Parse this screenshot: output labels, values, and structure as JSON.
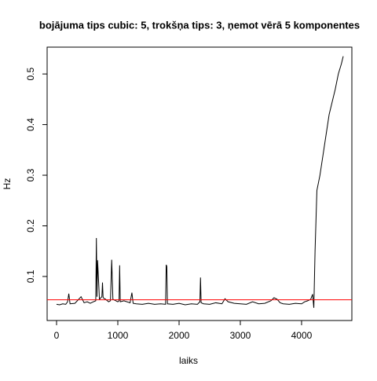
{
  "chart_data": {
    "type": "line",
    "title": "bojājuma tips cubic: 5, trokšņa tips: 3, ņemot vērā 5 komponentes",
    "x_label": "laiks",
    "y_label": "Hz",
    "series": [
      {
        "color": "#000000",
        "x": [
          0,
          50,
          100,
          150,
          180,
          200,
          220,
          300,
          400,
          450,
          500,
          550,
          600,
          640,
          650,
          660,
          670,
          700,
          740,
          750,
          760,
          800,
          850,
          880,
          900,
          920,
          1000,
          1020,
          1030,
          1040,
          1100,
          1200,
          1230,
          1250,
          1300,
          1400,
          1500,
          1600,
          1700,
          1780,
          1790,
          1800,
          1810,
          1900,
          2000,
          2100,
          2200,
          2300,
          2340,
          2350,
          2360,
          2400,
          2500,
          2600,
          2700,
          2750,
          2800,
          2900,
          3000,
          3100,
          3200,
          3300,
          3400,
          3500,
          3550,
          3600,
          3650,
          3700,
          3800,
          3900,
          4000,
          4050,
          4100,
          4150,
          4180,
          4200,
          4220,
          4250,
          4300,
          4350,
          4400,
          4450,
          4500,
          4550,
          4600,
          4650,
          4680
        ],
        "values": [
          0.045,
          0.044,
          0.046,
          0.045,
          0.05,
          0.066,
          0.046,
          0.047,
          0.06,
          0.048,
          0.05,
          0.047,
          0.05,
          0.052,
          0.176,
          0.06,
          0.132,
          0.055,
          0.06,
          0.088,
          0.058,
          0.055,
          0.05,
          0.052,
          0.133,
          0.055,
          0.05,
          0.052,
          0.122,
          0.05,
          0.052,
          0.048,
          0.068,
          0.047,
          0.046,
          0.045,
          0.047,
          0.045,
          0.046,
          0.045,
          0.123,
          0.12,
          0.046,
          0.045,
          0.047,
          0.044,
          0.046,
          0.045,
          0.05,
          0.098,
          0.048,
          0.046,
          0.045,
          0.048,
          0.046,
          0.056,
          0.05,
          0.047,
          0.046,
          0.045,
          0.05,
          0.046,
          0.047,
          0.052,
          0.058,
          0.055,
          0.048,
          0.046,
          0.045,
          0.047,
          0.046,
          0.05,
          0.052,
          0.055,
          0.065,
          0.038,
          0.15,
          0.27,
          0.3,
          0.34,
          0.38,
          0.42,
          0.445,
          0.47,
          0.5,
          0.52,
          0.535
        ]
      }
    ],
    "hline": {
      "value": 0.054,
      "color": "#ff0000"
    },
    "xlim": [
      -154,
      4821
    ],
    "xticks": [
      0,
      1000,
      2000,
      3000,
      4000
    ],
    "ylim": [
      0.013,
      0.553
    ],
    "yticks": [
      0.1,
      0.2,
      0.3,
      0.4,
      0.5
    ]
  }
}
